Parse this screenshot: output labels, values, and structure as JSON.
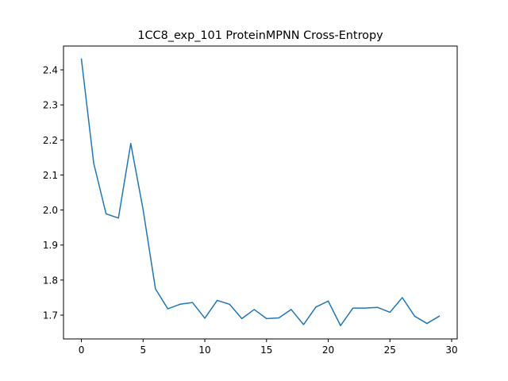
{
  "chart_data": {
    "type": "line",
    "title": "1CC8_exp_101 ProteinMPNN Cross-Entropy",
    "xlabel": "",
    "ylabel": "",
    "xlim": [
      -1.45,
      30.45
    ],
    "ylim": [
      1.632,
      2.468
    ],
    "x_ticks": [
      0,
      5,
      10,
      15,
      20,
      25,
      30
    ],
    "x_tick_labels": [
      "0",
      "5",
      "10",
      "15",
      "20",
      "25",
      "30"
    ],
    "y_ticks": [
      1.7,
      1.8,
      1.9,
      2.0,
      2.1,
      2.2,
      2.3,
      2.4
    ],
    "y_tick_labels": [
      "1.7",
      "1.8",
      "1.9",
      "2.0",
      "2.1",
      "2.2",
      "2.3",
      "2.4"
    ],
    "grid": false,
    "line_color": "#1f77b4",
    "series": [
      {
        "x": [
          0,
          1,
          2,
          3,
          4,
          5,
          6,
          7,
          8,
          9,
          10,
          11,
          12,
          13,
          14,
          15,
          16,
          17,
          18,
          19,
          20,
          21,
          22,
          23,
          24,
          25,
          26,
          27,
          28,
          29
        ],
        "values": [
          2.431,
          2.133,
          1.989,
          1.977,
          2.19,
          2.001,
          1.775,
          1.718,
          1.731,
          1.736,
          1.691,
          1.742,
          1.731,
          1.69,
          1.716,
          1.69,
          1.692,
          1.716,
          1.673,
          1.723,
          1.74,
          1.67,
          1.72,
          1.72,
          1.722,
          1.708,
          1.75,
          1.697,
          1.676,
          1.697
        ]
      }
    ]
  }
}
